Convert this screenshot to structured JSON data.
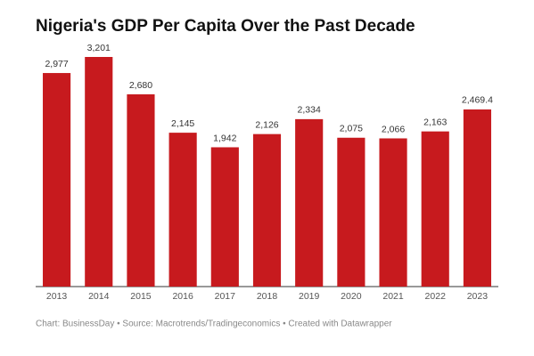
{
  "chart_data": {
    "type": "bar",
    "title": "Nigeria's GDP Per Capita Over the Past Decade",
    "categories": [
      "2013",
      "2014",
      "2015",
      "2016",
      "2017",
      "2018",
      "2019",
      "2020",
      "2021",
      "2022",
      "2023"
    ],
    "values": [
      2977,
      3201,
      2680,
      2145,
      1942,
      2126,
      2334,
      2075,
      2066,
      2163,
      2469.4
    ],
    "value_labels": [
      "2,977",
      "3,201",
      "2,680",
      "2,145",
      "1,942",
      "2,126",
      "2,334",
      "2,075",
      "2,066",
      "2,163",
      "2,469.4"
    ],
    "color": "#c71a1e",
    "footer": "Chart: BusinessDay • Source: Macrotrends/Tradingeconomics • Created with Datawrapper"
  }
}
